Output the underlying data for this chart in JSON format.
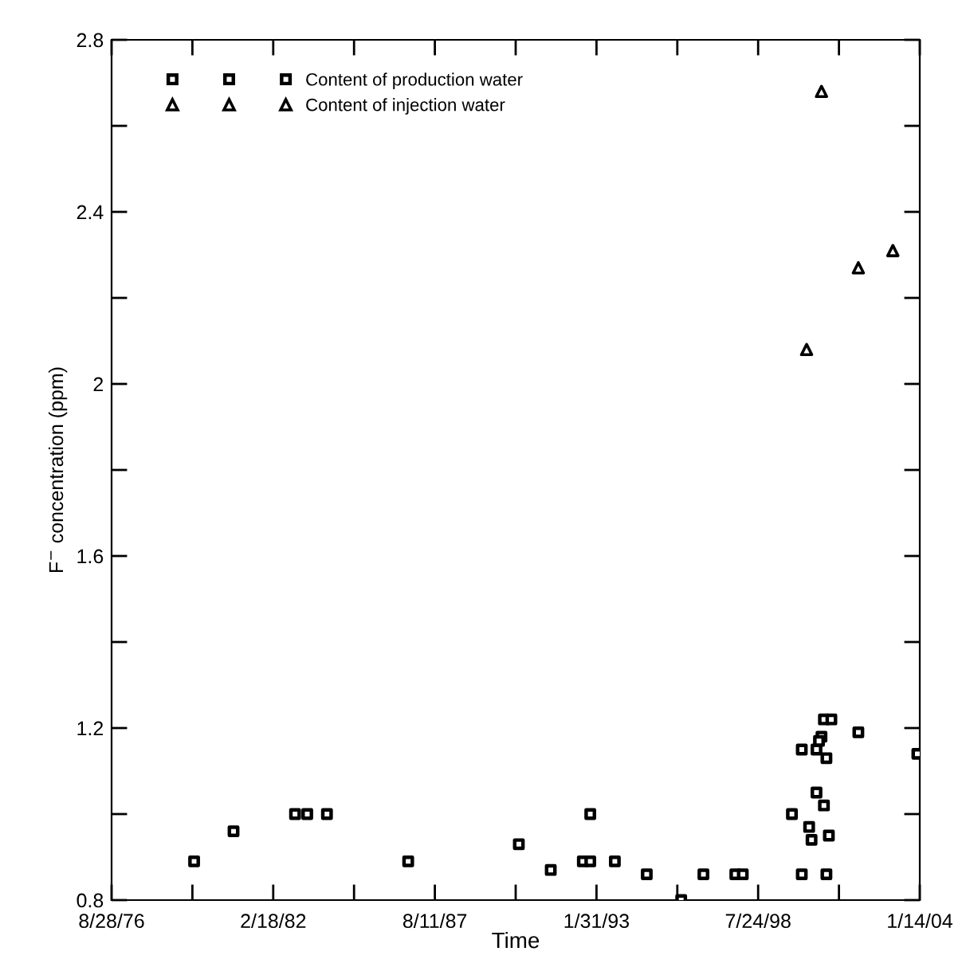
{
  "chart_data": {
    "type": "scatter",
    "xlabel": "Time",
    "ylabel": "F$^{−}$ concentration (ppm)",
    "xlim": [
      "1976-08-28",
      "2004-01-14"
    ],
    "ylim": [
      0.8,
      2.8
    ],
    "xticks": [
      {
        "value": "1976-08-28",
        "label": "8/28/76"
      },
      {
        "value": "1979-05-25",
        "label": null
      },
      {
        "value": "1982-02-18",
        "label": "2/18/82"
      },
      {
        "value": "1984-11-14",
        "label": null
      },
      {
        "value": "1987-08-11",
        "label": "8/11/87"
      },
      {
        "value": "1990-05-07",
        "label": null
      },
      {
        "value": "1993-01-31",
        "label": "1/31/93"
      },
      {
        "value": "1995-10-28",
        "label": null
      },
      {
        "value": "1998-07-24",
        "label": "7/24/98"
      },
      {
        "value": "2001-04-19",
        "label": null
      },
      {
        "value": "2004-01-14",
        "label": "1/14/04"
      }
    ],
    "yticks": [
      0.8,
      {
        "value": 1.0,
        "label": null
      },
      1.2,
      {
        "value": 1.4,
        "label": null
      },
      1.6,
      {
        "value": 1.8,
        "label": null
      },
      {
        "value": 2.0,
        "label": "2"
      },
      {
        "value": 2.2,
        "label": null
      },
      2.4,
      {
        "value": 2.6,
        "label": null
      },
      2.8
    ],
    "legend": "top left",
    "grid": false,
    "series": [
      {
        "name": "Content of production water",
        "color": "#000000",
        "marker": "square",
        "x": [
          "1979-06",
          "1980-10",
          "1982-11",
          "1983-04",
          "1983-12",
          "1986-09",
          "1990-06",
          "1991-07",
          "1992-08",
          "1992-11",
          "1992-11",
          "1993-09",
          "1994-10",
          "1995-12",
          "1996-09",
          "1997-10",
          "1998-01",
          "1999-09",
          "2000-01",
          "2000-01",
          "2000-04",
          "2000-05",
          "2000-07",
          "2000-07",
          "2000-09",
          "2000-08",
          "2000-10",
          "2000-11",
          "2000-10",
          "2001-01",
          "2000-12",
          "2000-11",
          "2001-12",
          "2003-12"
        ],
        "values": [
          0.89,
          0.96,
          1.0,
          1.0,
          1.0,
          0.89,
          0.93,
          0.87,
          0.89,
          0.89,
          1.0,
          0.89,
          0.86,
          0.8,
          0.86,
          0.86,
          0.86,
          1.0,
          1.15,
          0.86,
          0.97,
          0.94,
          1.05,
          1.15,
          1.18,
          1.17,
          1.02,
          1.13,
          1.22,
          1.22,
          0.95,
          0.86,
          1.19,
          1.14
        ]
      },
      {
        "name": "Content of injection water",
        "color": "#000000",
        "marker": "triangle",
        "x": [
          "2000-09",
          "2003-02",
          "2001-12",
          "2000-03"
        ],
        "values": [
          2.68,
          2.31,
          2.27,
          2.08
        ]
      }
    ]
  }
}
